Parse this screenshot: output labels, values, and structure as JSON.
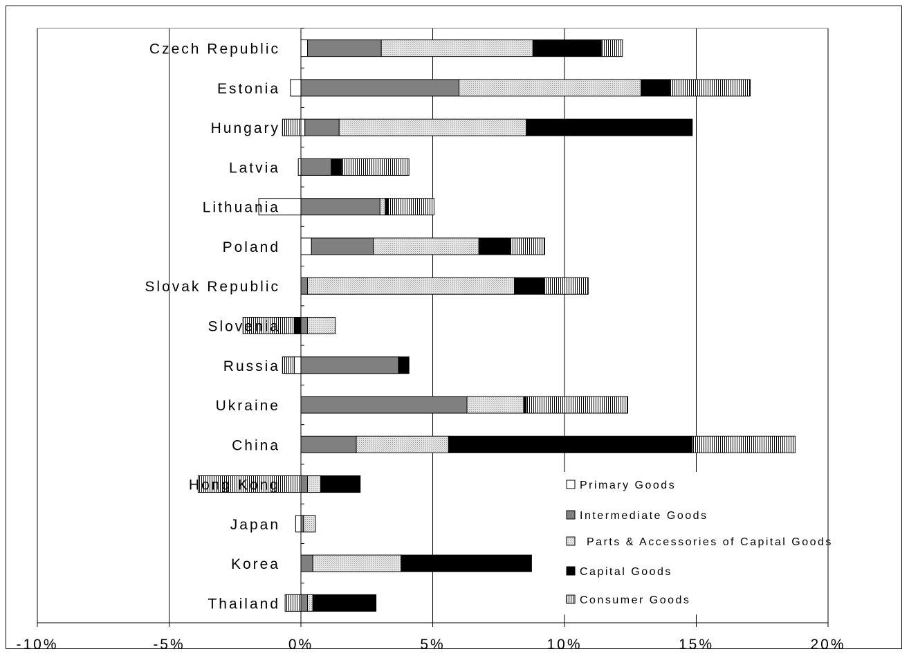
{
  "chart_data": {
    "type": "bar",
    "orientation": "horizontal",
    "stacked": true,
    "title": "",
    "xlabel": "",
    "ylabel": "",
    "xlim": [
      -10,
      20
    ],
    "x_ticks": [
      "-10%",
      "-5%",
      "0%",
      "5%",
      "10%",
      "15%",
      "20%"
    ],
    "grid": true,
    "legend_position": "lower-right",
    "categories": [
      "Czech Republic",
      "Estonia",
      "Hungary",
      "Latvia",
      "Lithuania",
      "Poland",
      "Slovak Republic",
      "Slovenia",
      "Russia",
      "Ukraine",
      "China",
      "Hong Kong",
      "Japan",
      "Korea",
      "Thailand"
    ],
    "series": [
      {
        "name": "Primary Goods",
        "color": "#ffffff",
        "pattern": "none",
        "values": [
          0.25,
          -0.4,
          0.15,
          -0.1,
          -1.6,
          0.4,
          0.0,
          0.0,
          -0.25,
          0.0,
          0.0,
          0.0,
          -0.2,
          0.0,
          0.0
        ]
      },
      {
        "name": "Intermediate Goods",
        "color": "#808080",
        "pattern": "none",
        "values": [
          2.8,
          6.0,
          1.3,
          1.15,
          3.0,
          2.35,
          0.25,
          0.25,
          3.7,
          6.3,
          2.1,
          0.25,
          0.1,
          0.45,
          0.25
        ]
      },
      {
        "name": "Parts & Accessories of Capital Goods",
        "color": "#dddddd",
        "pattern": "dots",
        "values": [
          5.75,
          6.9,
          7.1,
          0.0,
          0.2,
          4.0,
          7.85,
          1.05,
          0.0,
          2.15,
          3.5,
          0.5,
          0.45,
          3.35,
          0.2
        ]
      },
      {
        "name": "Capital Goods",
        "color": "#000000",
        "pattern": "none",
        "values": [
          2.6,
          1.1,
          6.3,
          0.4,
          0.1,
          1.2,
          1.15,
          -0.25,
          0.4,
          0.1,
          9.25,
          1.5,
          0.0,
          4.95,
          2.4
        ]
      },
      {
        "name": "Consumer Goods",
        "color": "#ffffff",
        "pattern": "vlines",
        "values": [
          0.8,
          3.05,
          -0.7,
          2.55,
          1.75,
          1.3,
          1.65,
          -1.95,
          -0.45,
          3.85,
          3.9,
          -3.9,
          0.0,
          0.0,
          -0.6
        ]
      }
    ]
  }
}
